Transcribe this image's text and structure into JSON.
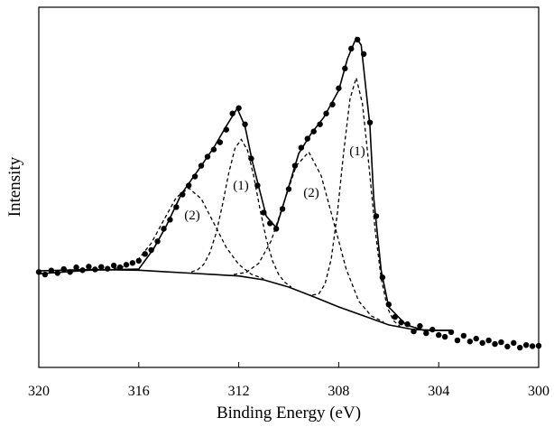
{
  "chart_data": {
    "type": "line",
    "x_label": "Binding Energy (eV)",
    "y_label": "Intensity",
    "xlim": [
      320,
      300
    ],
    "xticks": [
      320,
      316,
      312,
      308,
      304,
      300
    ],
    "ylim": [
      0,
      100
    ],
    "annotations": [
      "(2)",
      "(1)",
      "(2)",
      "(1)"
    ],
    "series": [
      {
        "style": "dashed",
        "color": "#000000",
        "x": [
          317,
          316.5,
          316,
          315.5,
          315,
          314.5,
          314,
          313.5,
          313,
          312.5,
          312,
          311.5,
          311
        ],
        "values": [
          27.4,
          28.1,
          30.2,
          34.5,
          40.9,
          47.2,
          49.8,
          46.8,
          40.1,
          33.3,
          28.6,
          25.9,
          24.6
        ]
      },
      {
        "style": "dashed",
        "color": "#000000",
        "x": [
          313.9,
          313.65,
          313.4,
          313.15,
          312.9,
          312.65,
          312.4,
          312.15,
          311.9,
          311.65,
          311.4,
          311.15,
          310.9,
          310.65,
          310.4,
          310.15,
          309.9
        ],
        "values": [
          26.5,
          27.1,
          28.6,
          31.9,
          37.4,
          45.2,
          53.9,
          60.8,
          63.3,
          60.3,
          53.1,
          44,
          35.7,
          29.6,
          25.8,
          23.6,
          22.3
        ]
      },
      {
        "style": "dashed",
        "color": "#000000",
        "x": [
          312.2,
          311.7,
          311.2,
          310.7,
          310.2,
          309.7,
          309.2,
          308.7,
          308.2,
          307.7,
          307.2,
          306.7,
          306.2
        ],
        "values": [
          25.8,
          26.4,
          28.9,
          35.2,
          45.7,
          56,
          59.8,
          53.2,
          40.3,
          27.3,
          18.4,
          14.3,
          12.6
        ]
      },
      {
        "style": "dashed",
        "color": "#000000",
        "x": [
          309.05,
          308.8,
          308.55,
          308.3,
          308.05,
          307.8,
          307.55,
          307.3,
          307.05,
          306.8,
          306.55,
          306.3,
          306.05,
          305.8,
          305.55
        ],
        "values": [
          20.1,
          20.4,
          23.1,
          30.1,
          43,
          59.8,
          74.5,
          80.4,
          73.2,
          56.8,
          38.6,
          24.6,
          16.6,
          12.9,
          11.4
        ]
      },
      {
        "style": "solid",
        "color": "#000000",
        "x": [
          320,
          318,
          316,
          315,
          314,
          313,
          312,
          311,
          310,
          309,
          308,
          307,
          306,
          305,
          304,
          303.5
        ],
        "values": [
          26.8,
          27.2,
          27,
          26.6,
          26.2,
          25.8,
          25.4,
          24.3,
          22.3,
          19.6,
          16.8,
          14.3,
          11.8,
          10.5,
          10.3,
          10.3
        ]
      },
      {
        "style": "solid",
        "color": "#000000",
        "x": [
          320,
          318,
          316,
          315.4,
          314.9,
          314.3,
          313.5,
          313,
          312.5,
          312.06,
          311.75,
          311.45,
          310.9,
          310.5,
          310.2,
          309.6,
          309.1,
          308.6,
          308,
          307.65,
          307.3,
          307.1,
          306.75,
          306.6,
          306.3,
          306,
          305.3,
          304.6,
          304,
          303.5
        ],
        "values": [
          26,
          27,
          27.3,
          33,
          39.3,
          48.1,
          56,
          61,
          67,
          71.9,
          67,
          57,
          42,
          38.8,
          45.6,
          59.4,
          64.9,
          69.4,
          76.9,
          85.7,
          91.5,
          89.5,
          67,
          47,
          26.8,
          16.8,
          11.8,
          10.3,
          10.3,
          10.3
        ]
      },
      {
        "style": "markers",
        "color": "#000000",
        "x": [
          320,
          319.75,
          319.5,
          319.25,
          319,
          318.75,
          318.5,
          318.25,
          318,
          317.75,
          317.5,
          317.25,
          317,
          316.75,
          316.5,
          316.25,
          316,
          315.75,
          315.5,
          315.25,
          315,
          314.75,
          314.5,
          314.25,
          314,
          313.75,
          313.5,
          313.25,
          313,
          312.75,
          312.5,
          312.25,
          312,
          311.75,
          311.5,
          311.25,
          311,
          310.75,
          310.5,
          310.25,
          310,
          309.75,
          309.5,
          309.25,
          309,
          308.75,
          308.5,
          308.25,
          308,
          307.75,
          307.5,
          307.25,
          307,
          306.75,
          306.5,
          306.25,
          306,
          305.75,
          305.5,
          305.25,
          305,
          304.75,
          304.5,
          304.25,
          304,
          303.75,
          303.5,
          303.25,
          303,
          302.75,
          302.5,
          302.25,
          302,
          301.75,
          301.5,
          301.25,
          301,
          300.75,
          300.5,
          300.25,
          300
        ],
        "values": [
          26.5,
          25.8,
          26.9,
          26.2,
          27.3,
          26.5,
          27.8,
          27,
          28,
          27.2,
          27.9,
          27.4,
          28.3,
          27.8,
          28.5,
          29,
          29.6,
          31.5,
          32.6,
          35,
          38.5,
          41,
          44.5,
          48,
          50.5,
          53,
          56,
          58.5,
          60.5,
          62.5,
          66,
          70.5,
          72,
          67.5,
          58,
          50.5,
          43,
          40,
          38.5,
          44,
          49.5,
          56,
          61,
          63.5,
          65.5,
          67.5,
          70.5,
          73,
          77.5,
          83,
          88.5,
          91,
          87,
          68,
          42,
          25,
          17.5,
          14,
          12.5,
          12,
          10,
          11.5,
          9.5,
          10.5,
          9,
          8.5,
          9.8,
          7.5,
          8.8,
          7.2,
          8,
          6.8,
          7.5,
          6.5,
          7,
          5.8,
          6.8,
          5.5,
          6.2,
          5.9,
          6
        ]
      }
    ]
  }
}
